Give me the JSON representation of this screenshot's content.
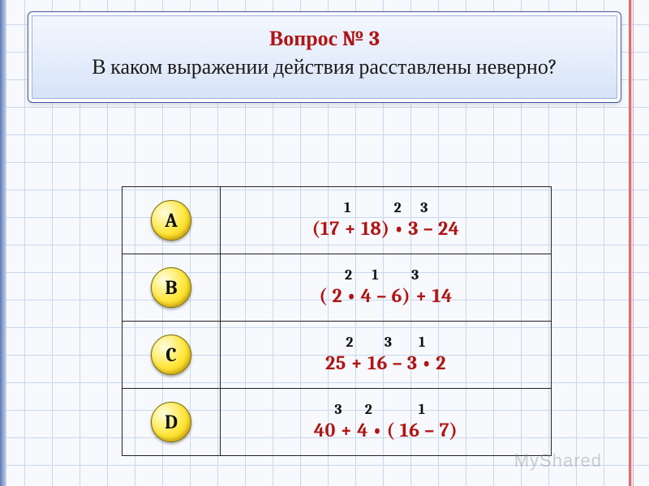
{
  "colors": {
    "accent_red": "#b01515",
    "button_yellow": "#ffe63a",
    "grid_line": "#c9d8ee",
    "paper_bg": "#f7f9fc"
  },
  "question": {
    "title": "Вопрос № 3",
    "text": "В каком выражении действия расставлены неверно?"
  },
  "answers": [
    {
      "label": "A",
      "formula": "(17 + 18) • 3 – 24",
      "order": [
        {
          "n": "1",
          "pct": 24
        },
        {
          "n": "2",
          "pct": 58
        },
        {
          "n": "3",
          "pct": 76
        }
      ]
    },
    {
      "label": "B",
      "formula": "( 2 • 4 – 6) + 14",
      "order": [
        {
          "n": "2",
          "pct": 22
        },
        {
          "n": "1",
          "pct": 42
        },
        {
          "n": "3",
          "pct": 72
        }
      ]
    },
    {
      "label": "C",
      "formula": "25 + 16 – 3 • 2",
      "order": [
        {
          "n": "2",
          "pct": 20
        },
        {
          "n": "3",
          "pct": 52
        },
        {
          "n": "1",
          "pct": 80
        }
      ]
    },
    {
      "label": "D",
      "formula": "40 + 4 • ( 16 – 7)",
      "order": [
        {
          "n": "3",
          "pct": 17
        },
        {
          "n": "2",
          "pct": 38
        },
        {
          "n": "1",
          "pct": 75
        }
      ]
    }
  ],
  "watermark": "MyShared"
}
